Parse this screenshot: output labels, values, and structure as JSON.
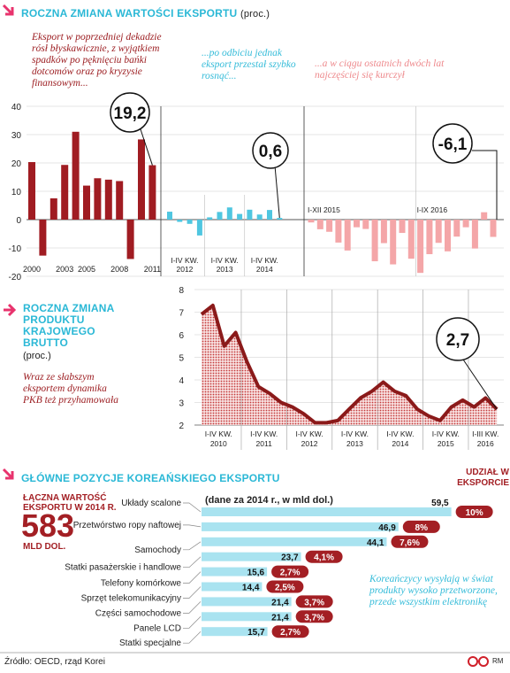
{
  "chart_data": [
    {
      "type": "bar",
      "title": "ROCZNA ZMIANA WARTOŚCI EKSPORTU",
      "subtitle": "(proc.)",
      "ylim": [
        -20,
        40
      ],
      "yticks": [
        -20,
        -10,
        0,
        10,
        20,
        30,
        40
      ],
      "grid": true,
      "panels": [
        {
          "categories": [
            "2000",
            null,
            null,
            "2003",
            null,
            "2005",
            null,
            null,
            "2008",
            null,
            null,
            "2011"
          ],
          "values": [
            20.3,
            -12.7,
            7.5,
            19.3,
            31.0,
            12.0,
            14.6,
            14.1,
            13.6,
            -13.9,
            28.3,
            19.2
          ],
          "value_labels": [
            null,
            null,
            null,
            null,
            null,
            null,
            null,
            null,
            null,
            null,
            null,
            "19,2"
          ],
          "color": "#a01c22",
          "annotation": "Eksport w poprzedniej dekadzie rósł błyskawicznie, z wyjątkiem spadków po pęknięciu bańki dotcomów oraz po kryzysie finansowym..."
        },
        {
          "categories": [
            "2012",
            null,
            null,
            null,
            "2013",
            null,
            null,
            null,
            "2014",
            null,
            null,
            null
          ],
          "period_labels": [
            "I-IV KW.",
            null,
            null,
            null,
            "I-IV KW.",
            null,
            null,
            null,
            "I-IV KW.",
            null,
            null,
            null
          ],
          "values": [
            2.8,
            -0.8,
            -1.5,
            -5.6,
            0.8,
            2.7,
            4.3,
            2.0,
            3.5,
            1.8,
            3.4,
            0.6
          ],
          "value_labels": [
            null,
            null,
            null,
            null,
            null,
            null,
            null,
            null,
            null,
            null,
            null,
            "0,6"
          ],
          "color": "#4fc6e0",
          "annotation": "...po odbiciu jednak eksport przestał szybko rosnąć..."
        },
        {
          "categories": [
            "I-XII 2015",
            null,
            null,
            null,
            null,
            null,
            null,
            null,
            null,
            null,
            null,
            null,
            "I-IX 2016",
            null,
            null,
            null,
            null,
            null,
            null,
            null,
            null
          ],
          "values": [
            -1.0,
            -3.4,
            -4.3,
            -8.1,
            -10.9,
            -2.7,
            -3.3,
            -14.7,
            -8.3,
            -15.8,
            -4.7,
            -13.8,
            -18.8,
            -12.2,
            -8.2,
            -11.2,
            -6.0,
            -2.7,
            -10.2,
            2.6,
            -6.1
          ],
          "value_labels": [
            null,
            null,
            null,
            null,
            null,
            null,
            null,
            null,
            null,
            null,
            null,
            null,
            null,
            null,
            null,
            null,
            null,
            null,
            null,
            null,
            "-6,1"
          ],
          "color": "#f4a6a8",
          "annotation": "...a w ciągu ostatnich dwóch lat najczęściej się kurczył"
        }
      ]
    },
    {
      "type": "area",
      "title": "ROCZNA ZMIANA PRODUKTU KRAJOWEGO BRUTTO",
      "subtitle": "(proc.)",
      "annotation": "Wraz ze słabszym eksportem dynamika PKB też przyhamowała",
      "categories": [
        "2010",
        null,
        null,
        null,
        "2011",
        null,
        null,
        null,
        "2012",
        null,
        null,
        null,
        "2013",
        null,
        null,
        null,
        "2014",
        null,
        null,
        null,
        "2015",
        null,
        null,
        null,
        "2016",
        null,
        null
      ],
      "period_labels": [
        "I-IV KW.",
        null,
        null,
        null,
        "I-IV KW.",
        null,
        null,
        null,
        "I-IV KW.",
        null,
        null,
        null,
        "I-IV KW.",
        null,
        null,
        null,
        "I-IV KW.",
        null,
        null,
        null,
        "I-IV KW.",
        null,
        null,
        null,
        "I-III KW.",
        null,
        null
      ],
      "values": [
        6.9,
        7.3,
        5.5,
        6.1,
        4.8,
        3.7,
        3.4,
        3.0,
        2.8,
        2.5,
        2.1,
        2.1,
        2.2,
        2.7,
        3.2,
        3.5,
        3.9,
        3.5,
        3.3,
        2.7,
        2.4,
        2.2,
        2.8,
        3.1,
        2.8,
        3.2,
        2.7
      ],
      "value_labels": [
        null,
        null,
        null,
        null,
        null,
        null,
        null,
        null,
        null,
        null,
        null,
        null,
        null,
        null,
        null,
        null,
        null,
        null,
        null,
        null,
        null,
        null,
        null,
        null,
        null,
        null,
        "2,7"
      ],
      "color": "#8b1a1a",
      "ylim": [
        2,
        8
      ],
      "yticks": [
        2,
        3,
        4,
        5,
        6,
        7,
        8
      ],
      "grid": true
    },
    {
      "type": "hbar",
      "title": "GŁÓWNE POZYCJE KOREAŃSKIEGO EKSPORTU",
      "subtitle": "(dane za 2014 r., w mld dol.)",
      "categories": [
        "Układy scalone",
        "Przetwórstwo ropy naftowej",
        "Samochody",
        "Statki pasażerskie i handlowe",
        "Telefony komórkowe",
        "Sprzęt telekomunikacyjny",
        "Części samochodowe",
        "Panele LCD",
        "Statki specjalne"
      ],
      "values": [
        59.5,
        46.9,
        44.1,
        23.7,
        15.6,
        14.4,
        21.4,
        21.4,
        15.7
      ],
      "value_labels": [
        "59,5",
        "46,9",
        "44,1",
        "23,7",
        "15,6",
        "14,4",
        "21,4",
        "21,4",
        "15,7"
      ],
      "color": "#a9e3f0",
      "xlim": [
        0,
        60
      ],
      "share": {
        "title": "UDZIAŁ W EKSPORCIE",
        "values": [
          10,
          8,
          7.6,
          4.1,
          2.7,
          2.5,
          3.7,
          3.7,
          2.7
        ],
        "value_labels": [
          "10%",
          "8%",
          "7,6%",
          "4,1%",
          "2,7%",
          "2,5%",
          "3,7%",
          "3,7%",
          "2,7%"
        ],
        "color": "#a31f24"
      },
      "total": {
        "label": "ŁĄCZNA WARTOŚĆ EKSPORTU W 2014 R.",
        "value": 583,
        "unit": "MLD DOL."
      },
      "annotation": "Koreańczycy wysyłają w świat produkty wysoko przetworzone, przede wszystkim elektronikę"
    }
  ],
  "footer": {
    "source": "Źródło: OECD, rząd Korei",
    "logo": "RM"
  }
}
